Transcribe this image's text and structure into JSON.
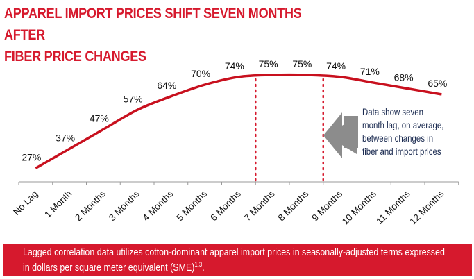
{
  "title_line1": "APPAREL IMPORT PRICES SHIFT SEVEN MONTHS AFTER",
  "title_line2": "FIBER PRICE CHANGES",
  "annotation": "Data show seven month lag, on average, between changes in fiber and import prices",
  "footer": {
    "text": "Lagged correlation data utilizes cotton-dominant apparel import prices in seasonally-adjusted terms expressed in dollars per square meter equivalent (SME)",
    "superscript": "1,3",
    "end": "."
  },
  "colors": {
    "accent": "#d6192d",
    "line": "#c8101e",
    "arrow": "#8c8c8c"
  },
  "chart_data": {
    "type": "line",
    "categories": [
      "No Lag",
      "1 Month",
      "2 Months",
      "3 Months",
      "4 Months",
      "5 Months",
      "6 Months",
      "7 Months",
      "8 Months",
      "9 Months",
      "10 Months",
      "11 Months",
      "12 Months"
    ],
    "values": [
      27,
      37,
      47,
      57,
      64,
      70,
      74,
      75,
      75,
      74,
      71,
      68,
      65
    ],
    "data_labels": [
      "27%",
      "37%",
      "47%",
      "57%",
      "64%",
      "70%",
      "74%",
      "75%",
      "75%",
      "74%",
      "71%",
      "68%",
      "65%"
    ],
    "ylim": [
      20,
      85
    ],
    "y_axis_visible": false,
    "grid": false,
    "highlight_range": [
      "7 Months",
      "8 Months"
    ]
  }
}
